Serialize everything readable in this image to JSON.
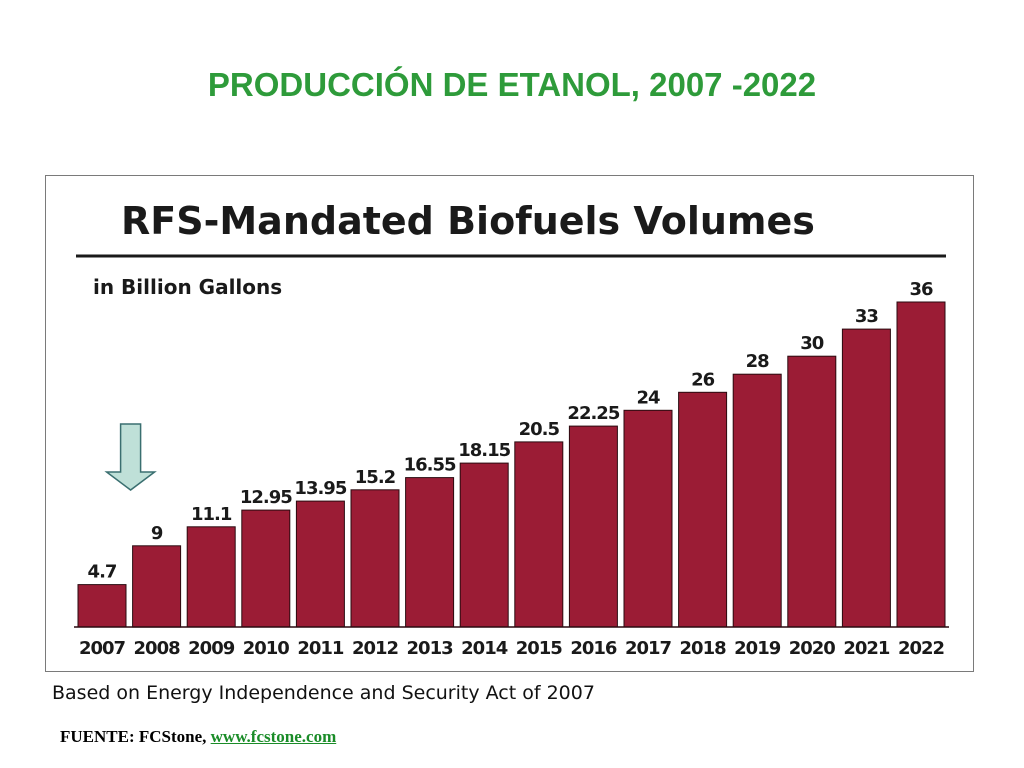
{
  "slide": {
    "title": "PRODUCCIÓN DE ETANOL, 2007 -2022",
    "basis_note": "Based on Energy Independence and Security Act of 2007",
    "source_prefix": "FUENTE: FCStone, ",
    "source_link": "www.fcstone.com"
  },
  "chart_data": {
    "type": "bar",
    "title": "RFS-Mandated Biofuels Volumes",
    "unit_label": "in Billion Gallons",
    "categories": [
      "2007",
      "2008",
      "2009",
      "2010",
      "2011",
      "2012",
      "2013",
      "2014",
      "2015",
      "2016",
      "2017",
      "2018",
      "2019",
      "2020",
      "2021",
      "2022"
    ],
    "values": [
      4.7,
      9,
      11.1,
      12.95,
      13.95,
      15.2,
      16.55,
      18.15,
      20.5,
      22.25,
      24,
      26,
      28,
      30,
      33,
      36
    ],
    "value_labels": [
      "4.7",
      "9",
      "11.1",
      "12.95",
      "13.95",
      "15.2",
      "16.55",
      "18.15",
      "20.5",
      "22.25",
      "24",
      "26",
      "28",
      "30",
      "33",
      "36"
    ],
    "ylim": [
      0,
      36
    ],
    "bar_color": "#9b1c35",
    "grid": false,
    "annotation": {
      "type": "arrow-down",
      "category": "2008",
      "color": "#bfe0d8"
    }
  }
}
